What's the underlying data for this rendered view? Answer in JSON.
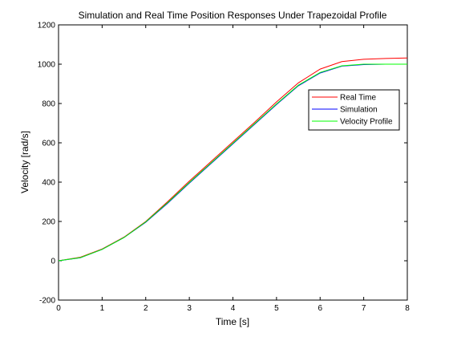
{
  "chart_data": {
    "type": "line",
    "title": "Simulation and Real Time Position Responses Under Trapezoidal Profile",
    "xlabel": "Time [s]",
    "ylabel": "Velocity [rad/s]",
    "xlim": [
      0,
      8
    ],
    "ylim": [
      -200,
      1200
    ],
    "xticks": [
      0,
      1,
      2,
      3,
      4,
      5,
      6,
      7,
      8
    ],
    "yticks": [
      -200,
      0,
      200,
      400,
      600,
      800,
      1000,
      1200
    ],
    "grid": false,
    "legend_position": "right, upper-middle",
    "series": [
      {
        "name": "Real Time",
        "color": "#ff0000",
        "x": [
          0,
          0.5,
          1.0,
          1.5,
          2.0,
          2.5,
          3.0,
          3.5,
          4.0,
          4.5,
          5.0,
          5.5,
          6.0,
          6.5,
          7.0,
          7.5,
          8.0
        ],
        "y": [
          0,
          18,
          60,
          120,
          200,
          300,
          405,
          505,
          605,
          705,
          808,
          905,
          975,
          1013,
          1025,
          1029,
          1032
        ]
      },
      {
        "name": "Simulation",
        "color": "#0000ff",
        "x": [
          0,
          0.5,
          1.0,
          1.5,
          2.0,
          2.5,
          3.0,
          3.5,
          4.0,
          4.5,
          5.0,
          5.5,
          6.0,
          6.5,
          7.0,
          7.5,
          8.0
        ],
        "y": [
          0,
          15,
          58,
          118,
          196,
          292,
          395,
          495,
          595,
          695,
          795,
          890,
          955,
          990,
          998,
          1000,
          1000
        ]
      },
      {
        "name": "Velocity Profile",
        "color": "#00ff00",
        "x": [
          0,
          0.5,
          1.0,
          1.5,
          2.0,
          2.5,
          3.0,
          3.5,
          4.0,
          4.5,
          5.0,
          5.5,
          6.0,
          6.5,
          7.0,
          7.5,
          8.0
        ],
        "y": [
          0,
          16,
          58,
          118,
          198,
          295,
          398,
          498,
          598,
          698,
          798,
          893,
          958,
          992,
          1000,
          1000,
          1000
        ]
      }
    ]
  }
}
